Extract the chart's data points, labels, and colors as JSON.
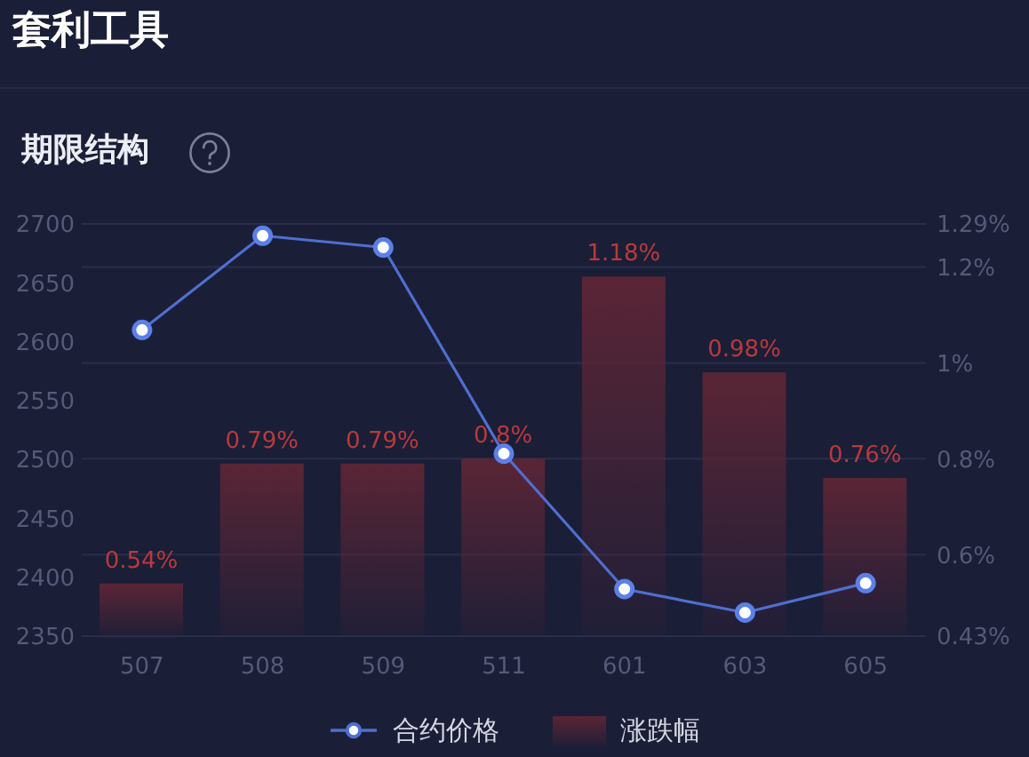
{
  "chart_data": {
    "type": "bar",
    "title": "套利工具",
    "subtitle": "期限结构",
    "categories": [
      "507",
      "508",
      "509",
      "511",
      "601",
      "603",
      "605"
    ],
    "series": [
      {
        "name": "合约价格",
        "type": "line",
        "color": "#4f6fd0",
        "values": [
          2610,
          2690,
          2680,
          2505,
          2390,
          2370,
          2395
        ]
      },
      {
        "name": "涨跌幅",
        "axis": "y2",
        "color": "#5a2536",
        "values": [
          0.54,
          0.79,
          0.79,
          0.8,
          1.18,
          0.98,
          0.76
        ],
        "value_labels": [
          "0.54%",
          "0.79%",
          "0.79%",
          "0.8%",
          "1.18%",
          "0.98%",
          "0.76%"
        ]
      }
    ],
    "ylim": [
      2350,
      2700
    ],
    "yticks": [
      2350,
      2400,
      2450,
      2500,
      2550,
      2600,
      2650,
      2700
    ],
    "y2lim": [
      0.43,
      1.29
    ],
    "y2ticks": [
      {
        "value": 0.43,
        "label": "0.43%"
      },
      {
        "value": 0.6,
        "label": "0.6%"
      },
      {
        "value": 0.8,
        "label": "0.8%"
      },
      {
        "value": 1,
        "label": "1%"
      },
      {
        "value": 1.2,
        "label": "1.2%"
      },
      {
        "value": 1.29,
        "label": "1.29%"
      }
    ],
    "grid": "y",
    "legend": "bottom",
    "marker": "circle"
  }
}
